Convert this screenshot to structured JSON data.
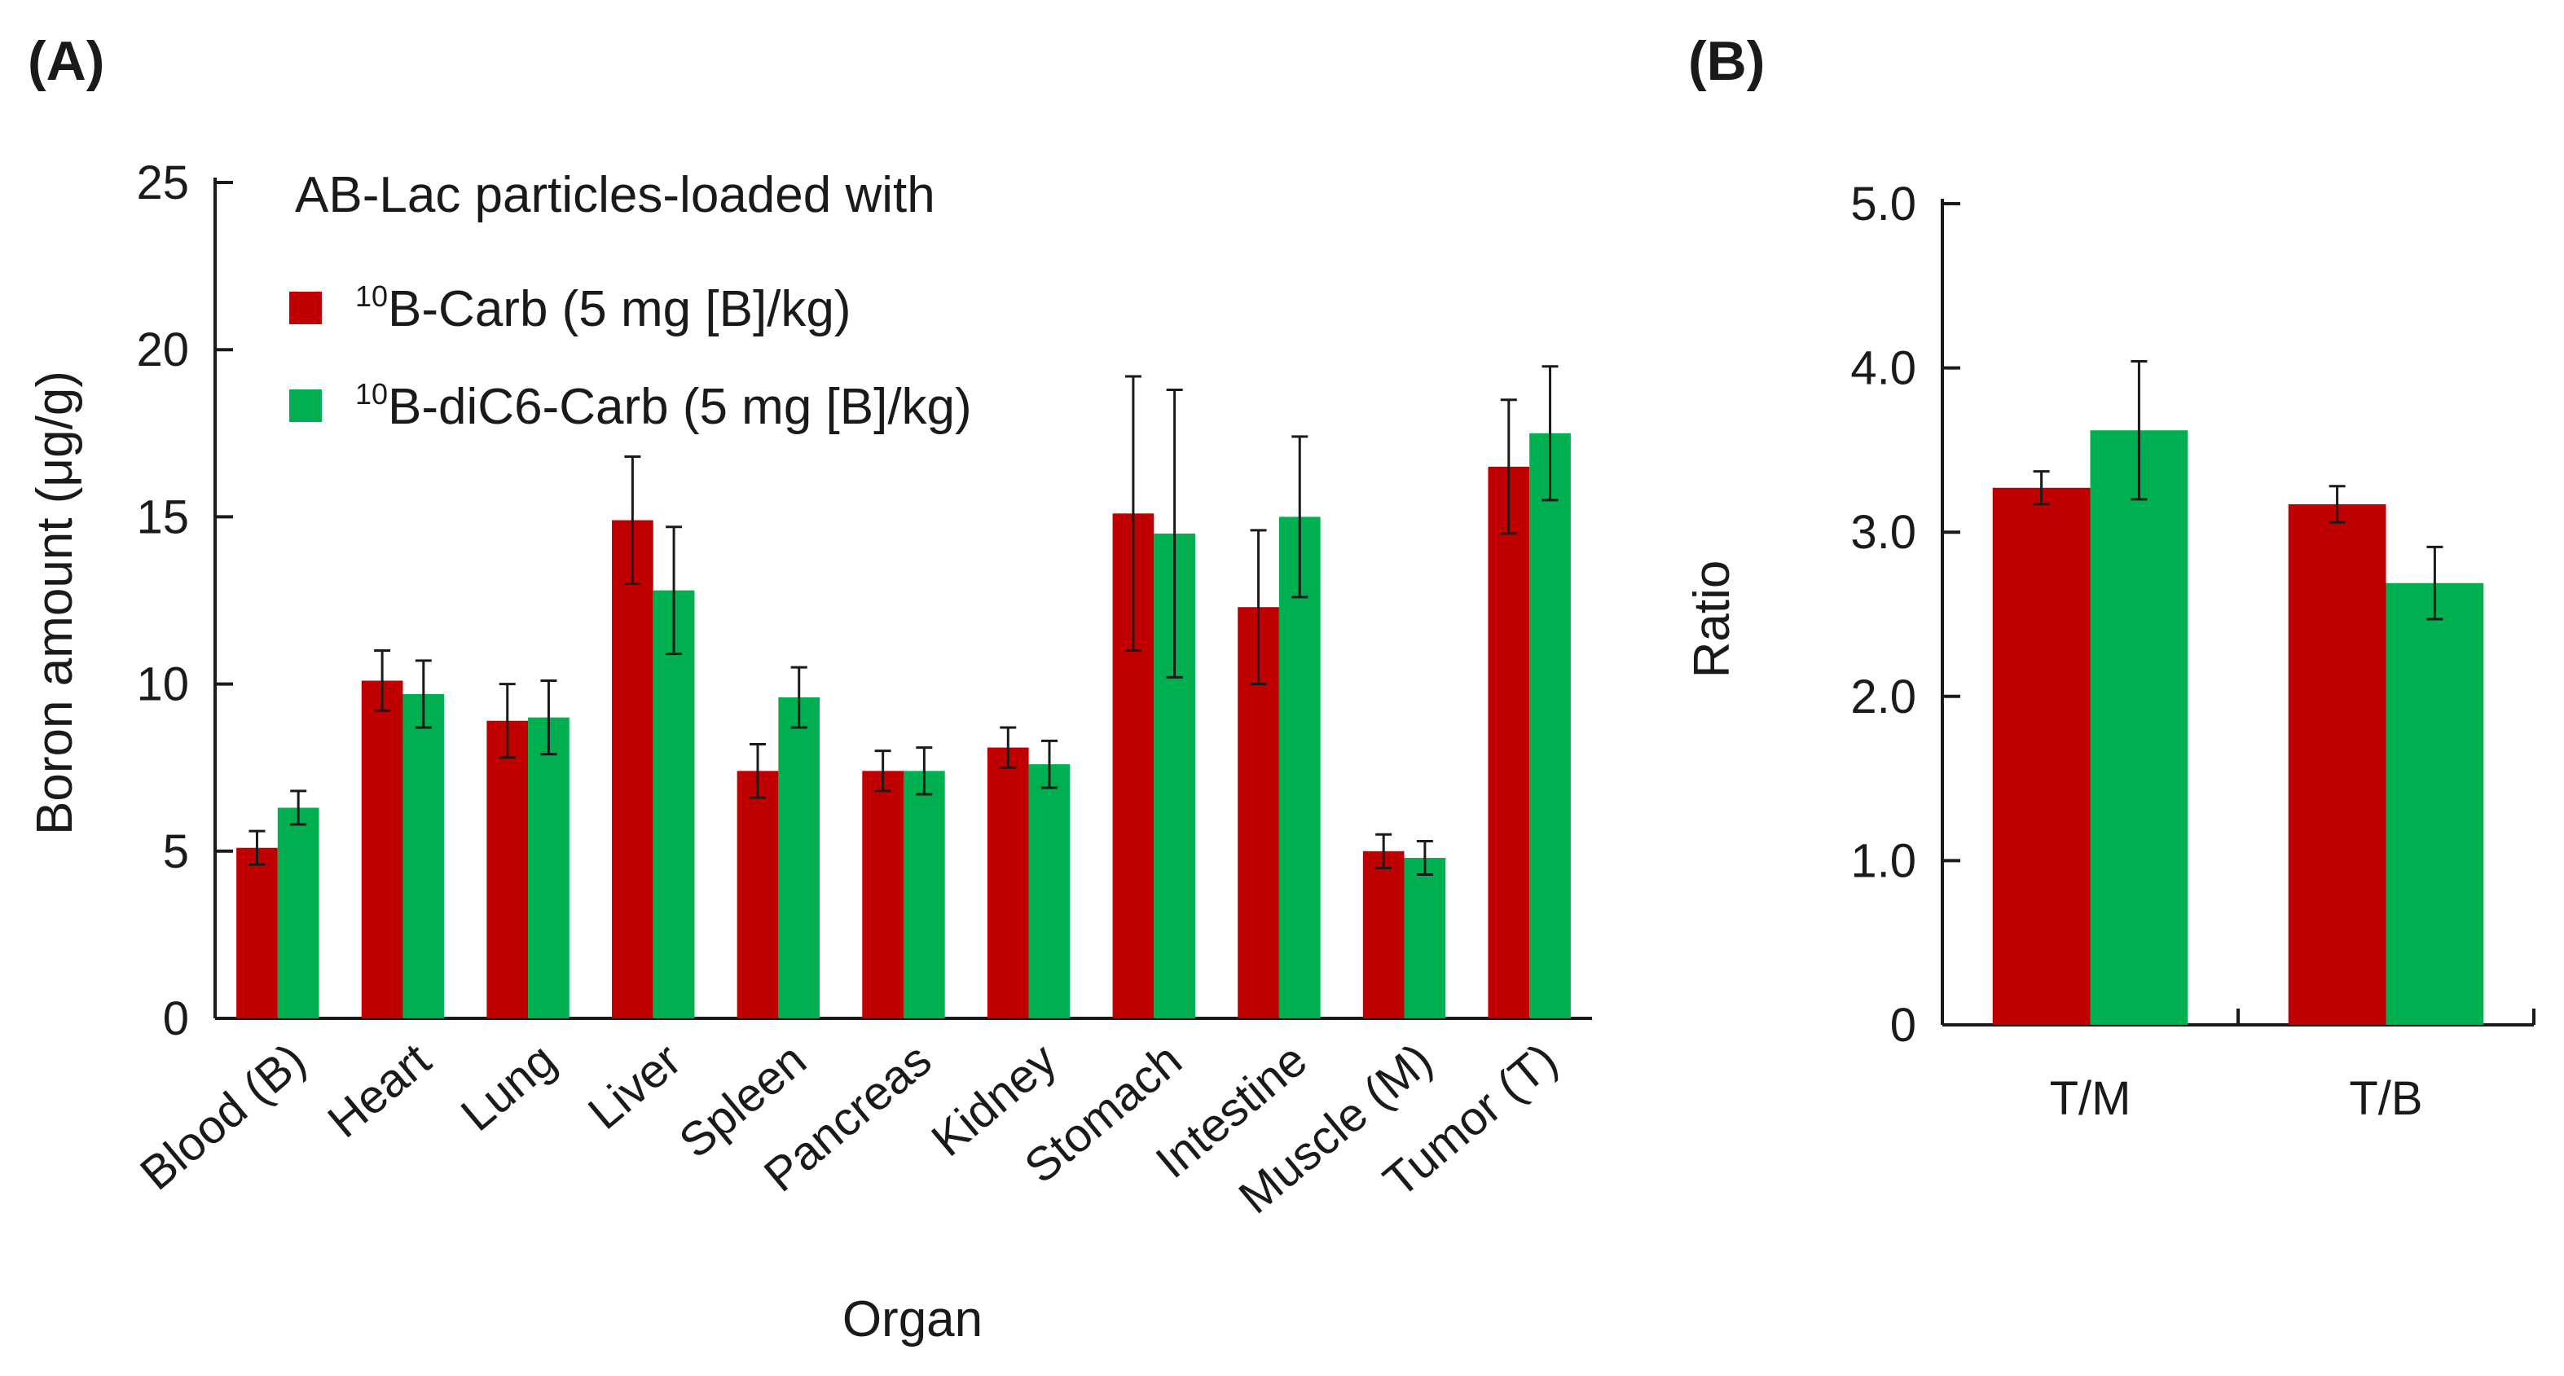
{
  "chart_data": [
    {
      "panel": "(A)",
      "type": "bar",
      "xlabel": "Organ",
      "ylabel": "Boron amount (μg/g)",
      "ylim": [
        0,
        25
      ],
      "yticks": [
        "0",
        "5",
        "10",
        "15",
        "20",
        "25"
      ],
      "legend": {
        "title": "AB-Lac particles-loaded with",
        "placement": "top-left",
        "entries": [
          {
            "sup": "10",
            "label": "B-Carb (5 mg [B]/kg)"
          },
          {
            "sup": "10",
            "label": "B-diC6-Carb (5 mg [B]/kg)"
          }
        ]
      },
      "categories": [
        "Blood (B)",
        "Heart",
        "Lung",
        "Liver",
        "Spleen",
        "Pancreas",
        "Kidney",
        "Stomach",
        "Intestine",
        "Muscle (M)",
        "Tumor (T)"
      ],
      "series": [
        {
          "name": "10B-Carb (5 mg [B]/kg)",
          "color": "#c00000",
          "values": [
            5.1,
            10.1,
            8.9,
            14.9,
            7.4,
            7.4,
            8.1,
            15.1,
            12.3,
            5.0,
            16.5
          ],
          "errors": [
            0.5,
            0.9,
            1.1,
            1.9,
            0.8,
            0.6,
            0.6,
            4.1,
            2.3,
            0.5,
            2.0
          ]
        },
        {
          "name": "10B-diC6-Carb (5 mg [B]/kg)",
          "color": "#00b050",
          "values": [
            6.3,
            9.7,
            9.0,
            12.8,
            9.6,
            7.4,
            7.6,
            14.5,
            15.0,
            4.8,
            17.5
          ],
          "errors": [
            0.5,
            1.0,
            1.1,
            1.9,
            0.9,
            0.7,
            0.7,
            4.3,
            2.4,
            0.5,
            2.0
          ]
        }
      ]
    },
    {
      "panel": "(B)",
      "type": "bar",
      "xlabel": "",
      "ylabel": "Ratio",
      "ylim": [
        0,
        5
      ],
      "yticks": [
        "0",
        "1.0",
        "2.0",
        "3.0",
        "4.0",
        "5.0"
      ],
      "categories": [
        "T/M",
        "T/B"
      ],
      "series": [
        {
          "name": "10B-Carb (5 mg [B]/kg)",
          "color": "#c00000",
          "values": [
            3.27,
            3.17
          ],
          "errors": [
            0.1,
            0.11
          ]
        },
        {
          "name": "10B-diC6-Carb (5 mg [B]/kg)",
          "color": "#00b050",
          "values": [
            3.62,
            2.69
          ],
          "errors": [
            0.42,
            0.22
          ]
        }
      ]
    }
  ]
}
